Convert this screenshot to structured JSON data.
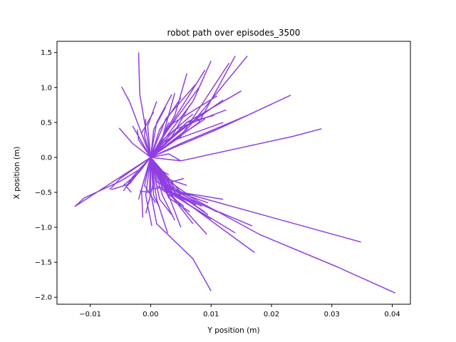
{
  "chart_data": {
    "type": "line",
    "title": "robot path over episodes_3500",
    "xlabel": "Y position (m)",
    "ylabel": "X position (m)",
    "xlim": [
      -0.0155,
      0.043
    ],
    "ylim": [
      -2.1,
      1.66
    ],
    "xticks": [
      -0.01,
      0.0,
      0.01,
      0.02,
      0.03,
      0.04
    ],
    "xtick_labels": [
      "−0.01",
      "0.00",
      "0.01",
      "0.02",
      "0.03",
      "0.04"
    ],
    "yticks": [
      -2.0,
      -1.5,
      -1.0,
      -0.5,
      0.0,
      0.5,
      1.0,
      1.5
    ],
    "ytick_labels": [
      "−2.0",
      "−1.5",
      "−1.0",
      "−0.5",
      "0.0",
      "0.5",
      "1.0",
      "1.5"
    ],
    "grid": false,
    "line_color": "#8e3fe0",
    "series": [
      {
        "x": [
          0.0,
          -0.0125,
          -0.011,
          -0.008,
          -0.005,
          -0.002,
          0.0
        ],
        "y": [
          0.0,
          -0.7,
          -0.58,
          -0.46,
          -0.34,
          -0.18,
          0.0
        ]
      },
      {
        "x": [
          0.0,
          0.0,
          0.001,
          0.007,
          0.01
        ],
        "y": [
          0.0,
          -0.5,
          -0.95,
          -1.45,
          -1.91
        ]
      },
      {
        "x": [
          0.0,
          0.002,
          0.018,
          0.031,
          0.0405
        ],
        "y": [
          0.0,
          -0.35,
          -1.1,
          -1.57,
          -1.94
        ]
      },
      {
        "x": [
          0.0,
          0.003,
          0.0348
        ],
        "y": [
          0.0,
          -0.45,
          -1.21
        ]
      },
      {
        "x": [
          0.0,
          0.002,
          0.0172
        ],
        "y": [
          0.0,
          -0.4,
          -1.36
        ]
      },
      {
        "x": [
          0.0,
          0.003,
          0.0168
        ],
        "y": [
          0.0,
          -0.48,
          -0.98
        ]
      },
      {
        "x": [
          0.0,
          0.005,
          0.012
        ],
        "y": [
          0.0,
          -0.5,
          -0.6
        ]
      },
      {
        "x": [
          0.0,
          0.002,
          0.014
        ],
        "y": [
          0.0,
          -0.45,
          -1.08
        ]
      },
      {
        "x": [
          0.0,
          0.002,
          0.0093
        ],
        "y": [
          0.0,
          -0.4,
          -1.1
        ]
      },
      {
        "x": [
          0.0,
          0.001,
          0.0028
        ],
        "y": [
          0.0,
          -0.6,
          -1.08
        ]
      },
      {
        "x": [
          0.0,
          -0.0008,
          0.0002
        ],
        "y": [
          0.0,
          -0.55,
          -0.98
        ]
      },
      {
        "x": [
          0.0,
          -0.0015,
          -0.0013
        ],
        "y": [
          0.0,
          -0.45,
          -0.86
        ]
      },
      {
        "x": [
          0.0,
          -0.005,
          -0.0068
        ],
        "y": [
          0.0,
          -0.3,
          -0.46
        ]
      },
      {
        "x": [
          0.0,
          -0.0035,
          -0.0065
        ],
        "y": [
          0.0,
          -0.38,
          -0.46
        ]
      },
      {
        "x": [
          0.0,
          -0.004,
          -0.0032
        ],
        "y": [
          0.0,
          -0.42,
          -0.5
        ]
      },
      {
        "x": [
          0.0,
          0.004,
          0.009
        ],
        "y": [
          0.0,
          -0.5,
          -0.78
        ]
      },
      {
        "x": [
          0.0,
          0.004,
          0.01
        ],
        "y": [
          0.0,
          -0.55,
          -0.88
        ]
      },
      {
        "x": [
          0.0,
          0.003,
          0.007
        ],
        "y": [
          0.0,
          -0.5,
          -0.95
        ]
      },
      {
        "x": [
          0.0,
          0.003,
          0.005
        ],
        "y": [
          0.0,
          -0.55,
          -1.0
        ]
      },
      {
        "x": [
          0.0,
          0.002,
          0.004
        ],
        "y": [
          0.0,
          -0.55,
          -0.9
        ]
      },
      {
        "x": [
          0.0,
          0.0025,
          0.006
        ],
        "y": [
          0.0,
          -0.3,
          -0.4
        ]
      },
      {
        "x": [
          0.0,
          0.0015,
          0.0065
        ],
        "y": [
          0.0,
          -0.25,
          -0.55
        ]
      },
      {
        "x": [
          0.0,
          -0.001,
          -0.002
        ],
        "y": [
          0.0,
          -0.3,
          -0.6
        ]
      },
      {
        "x": [
          0.0,
          0.001,
          0.0055
        ],
        "y": [
          0.0,
          -0.4,
          -0.7
        ]
      },
      {
        "x": [
          0.0,
          0.0005,
          -0.0008
        ],
        "y": [
          0.0,
          -0.35,
          -0.8
        ]
      },
      {
        "x": [
          0.0,
          0.001,
          0.011
        ],
        "y": [
          0.0,
          -0.35,
          -0.78
        ]
      },
      {
        "x": [
          0.0,
          0.002,
          0.0085
        ],
        "y": [
          0.0,
          -0.45,
          -0.7
        ]
      },
      {
        "x": [
          0.0,
          0.0015,
          0.0035
        ],
        "y": [
          0.0,
          -0.6,
          -0.82
        ]
      },
      {
        "x": [
          0.0,
          0.0005,
          0.0015
        ],
        "y": [
          0.0,
          -0.55,
          -0.72
        ]
      },
      {
        "x": [
          0.0,
          -0.001,
          0.0008
        ],
        "y": [
          0.0,
          -0.4,
          -0.65
        ]
      },
      {
        "x": [
          0.0,
          -0.002,
          -0.0045
        ],
        "y": [
          0.0,
          -0.22,
          -0.4
        ]
      },
      {
        "x": [
          0.0,
          -0.003,
          -0.0045
        ],
        "y": [
          0.0,
          -0.28,
          -0.48
        ]
      },
      {
        "x": [
          0.0,
          0.0035,
          0.0075
        ],
        "y": [
          0.0,
          -0.52,
          -0.68
        ]
      },
      {
        "x": [
          0.0,
          0.004,
          0.0095
        ],
        "y": [
          0.0,
          -0.48,
          -0.65
        ]
      },
      {
        "x": [
          0.0,
          0.003,
          0.0065
        ],
        "y": [
          0.0,
          -0.58,
          -0.78
        ]
      },
      {
        "x": [
          0.0,
          0.0025,
          0.0048
        ],
        "y": [
          0.0,
          -0.38,
          -0.52
        ]
      },
      {
        "x": [
          0.0,
          0.005,
          0.0095
        ],
        "y": [
          0.0,
          -0.55,
          -0.82
        ]
      },
      {
        "x": [
          0.0,
          0.002,
          0.003
        ],
        "y": [
          0.0,
          -0.2,
          -0.25
        ]
      },
      {
        "x": [
          0.0,
          -0.0002,
          -0.0018
        ],
        "y": [
          0.0,
          -0.5,
          -0.48
        ]
      },
      {
        "x": [
          0.0,
          0.0035,
          0.0055
        ],
        "y": [
          0.0,
          -0.35,
          -0.3
        ]
      },
      {
        "x": [
          0.0,
          0.0005,
          0.0025
        ],
        "y": [
          0.0,
          -0.45,
          -0.42
        ]
      },
      {
        "x": [
          0.0,
          -0.0018,
          -0.002
        ],
        "y": [
          0.0,
          0.9,
          1.5
        ]
      },
      {
        "x": [
          0.0,
          -0.0035,
          -0.0048
        ],
        "y": [
          0.0,
          0.8,
          1.01
        ]
      },
      {
        "x": [
          0.0,
          0.008,
          0.014
        ],
        "y": [
          0.0,
          0.5,
          1.45
        ]
      },
      {
        "x": [
          0.0,
          0.006,
          0.016
        ],
        "y": [
          0.0,
          0.4,
          1.45
        ]
      },
      {
        "x": [
          0.0,
          0.007,
          0.01
        ],
        "y": [
          0.0,
          0.8,
          1.38
        ]
      },
      {
        "x": [
          0.0,
          0.005,
          0.013
        ],
        "y": [
          0.0,
          0.3,
          1.35
        ]
      },
      {
        "x": [
          0.0,
          0.005,
          0.009
        ],
        "y": [
          0.0,
          0.7,
          1.25
        ]
      },
      {
        "x": [
          0.0,
          0.004,
          0.006
        ],
        "y": [
          0.0,
          0.6,
          1.2
        ]
      },
      {
        "x": [
          0.0,
          0.006,
          0.015
        ],
        "y": [
          0.0,
          0.5,
          0.95
        ]
      },
      {
        "x": [
          0.0,
          0.005,
          0.012
        ],
        "y": [
          0.0,
          0.4,
          0.82
        ]
      },
      {
        "x": [
          0.0,
          0.004,
          0.0125
        ],
        "y": [
          0.0,
          0.4,
          0.68
        ]
      },
      {
        "x": [
          0.0,
          0.006,
          0.0105
        ],
        "y": [
          0.0,
          0.5,
          0.6
        ]
      },
      {
        "x": [
          0.0,
          0.011,
          0.0232
        ],
        "y": [
          0.0,
          0.4,
          0.89
        ]
      },
      {
        "x": [
          0.0,
          0.005,
          0.016
        ],
        "y": [
          0.0,
          0.2,
          0.6
        ]
      },
      {
        "x": [
          0.0,
          0.005,
          0.0235,
          0.0283
        ],
        "y": [
          0.0,
          -0.05,
          0.3,
          0.41
        ]
      },
      {
        "x": [
          0.0,
          -0.003,
          -0.0052
        ],
        "y": [
          0.0,
          0.2,
          0.42
        ]
      },
      {
        "x": [
          0.0,
          -0.002,
          -0.003
        ],
        "y": [
          0.0,
          0.3,
          0.45
        ]
      },
      {
        "x": [
          0.0,
          -0.002,
          -0.0022
        ],
        "y": [
          0.0,
          0.25,
          0.4
        ]
      },
      {
        "x": [
          0.0,
          -0.001,
          -0.0008
        ],
        "y": [
          0.0,
          0.3,
          0.55
        ]
      },
      {
        "x": [
          0.0,
          0.001,
          0.0035
        ],
        "y": [
          0.0,
          0.5,
          0.9
        ]
      },
      {
        "x": [
          0.0,
          0.0015,
          0.005
        ],
        "y": [
          0.0,
          0.4,
          0.85
        ]
      },
      {
        "x": [
          0.0,
          0.002,
          0.004
        ],
        "y": [
          0.0,
          0.3,
          0.92
        ]
      },
      {
        "x": [
          0.0,
          0.0025,
          0.008
        ],
        "y": [
          0.0,
          0.35,
          1.0
        ]
      },
      {
        "x": [
          0.0,
          0.003,
          0.009
        ],
        "y": [
          0.0,
          0.2,
          0.55
        ]
      },
      {
        "x": [
          0.0,
          0.001,
          0.0045
        ],
        "y": [
          0.0,
          0.15,
          0.35
        ]
      },
      {
        "x": [
          0.0,
          0.002,
          0.007
        ],
        "y": [
          0.0,
          0.25,
          0.62
        ]
      },
      {
        "x": [
          0.0,
          0.0005,
          0.0025
        ],
        "y": [
          0.0,
          0.4,
          0.72
        ]
      },
      {
        "x": [
          0.0,
          -0.0005,
          0.001
        ],
        "y": [
          0.0,
          0.45,
          0.8
        ]
      },
      {
        "x": [
          0.0,
          0.0035,
          0.0065
        ],
        "y": [
          0.0,
          0.3,
          0.75
        ]
      },
      {
        "x": [
          0.0,
          0.0045,
          0.01
        ],
        "y": [
          0.0,
          0.35,
          0.7
        ]
      },
      {
        "x": [
          0.0,
          0.0015,
          0.003
        ],
        "y": [
          0.0,
          0.2,
          0.5
        ]
      },
      {
        "x": [
          0.0,
          -0.0015,
          0.0005
        ],
        "y": [
          0.0,
          0.35,
          0.65
        ]
      },
      {
        "x": [
          0.0,
          0.003,
          0.011
        ],
        "y": [
          0.0,
          0.45,
          0.88
        ]
      },
      {
        "x": [
          0.0,
          0.0025,
          0.0075
        ],
        "y": [
          0.0,
          0.55,
          1.05
        ]
      },
      {
        "x": [
          0.0,
          0.004,
          0.012
        ],
        "y": [
          0.0,
          0.25,
          0.5
        ]
      },
      {
        "x": [
          0.0,
          0.003,
          0.005
        ],
        "y": [
          0.0,
          0.05,
          -0.05
        ]
      }
    ]
  }
}
